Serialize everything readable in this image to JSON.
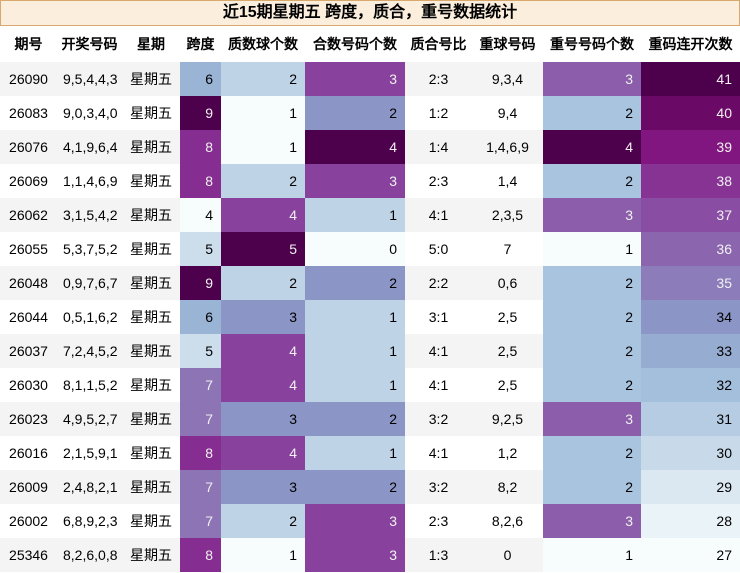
{
  "title": "近15期星期五 跨度，质合，重号数据统计",
  "table": {
    "header": [
      "期号",
      "开奖号码",
      "星期",
      "跨度",
      "质数球个数",
      "合数号码个数",
      "质合号比",
      "重球号码",
      "重号号码个数",
      "重码连开次数"
    ],
    "rows": [
      [
        "26090",
        "9,5,4,4,3",
        "星期五",
        6,
        2,
        3,
        "2:3",
        "9,3,4",
        3,
        41
      ],
      [
        "26083",
        "9,0,3,4,0",
        "星期五",
        9,
        1,
        2,
        "1:2",
        "9,4",
        2,
        40
      ],
      [
        "26076",
        "4,1,9,6,4",
        "星期五",
        8,
        1,
        4,
        "1:4",
        "1,4,6,9",
        4,
        39
      ],
      [
        "26069",
        "1,1,4,6,9",
        "星期五",
        8,
        2,
        3,
        "2:3",
        "1,4",
        2,
        38
      ],
      [
        "26062",
        "3,1,5,4,2",
        "星期五",
        4,
        4,
        1,
        "4:1",
        "2,3,5",
        3,
        37
      ],
      [
        "26055",
        "5,3,7,5,2",
        "星期五",
        5,
        5,
        0,
        "5:0",
        "7",
        1,
        36
      ],
      [
        "26048",
        "0,9,7,6,7",
        "星期五",
        9,
        2,
        2,
        "2:2",
        "0,6",
        2,
        35
      ],
      [
        "26044",
        "0,5,1,6,2",
        "星期五",
        6,
        3,
        1,
        "3:1",
        "2,5",
        2,
        34
      ],
      [
        "26037",
        "7,2,4,5,2",
        "星期五",
        5,
        4,
        1,
        "4:1",
        "2,5",
        2,
        33
      ],
      [
        "26030",
        "8,1,1,5,2",
        "星期五",
        7,
        4,
        1,
        "4:1",
        "2,5",
        2,
        32
      ],
      [
        "26023",
        "4,9,5,2,7",
        "星期五",
        7,
        3,
        2,
        "3:2",
        "9,2,5",
        3,
        31
      ],
      [
        "26016",
        "2,1,5,9,1",
        "星期五",
        8,
        4,
        1,
        "4:1",
        "1,2",
        2,
        30
      ],
      [
        "26009",
        "2,4,8,2,1",
        "星期五",
        7,
        3,
        2,
        "3:2",
        "8,2",
        2,
        29
      ],
      [
        "26002",
        "6,8,9,2,3",
        "星期五",
        7,
        2,
        3,
        "2:3",
        "8,2,6",
        3,
        28
      ],
      [
        "25346",
        "8,2,6,0,8",
        "星期五",
        8,
        1,
        3,
        "1:3",
        "0",
        1,
        27
      ]
    ]
  }
}
